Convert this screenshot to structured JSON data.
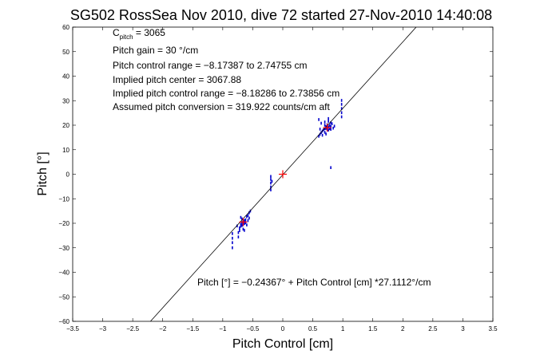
{
  "chart_data": {
    "type": "scatter",
    "title": "SG502 RossSea Nov 2010, dive 72 started 27-Nov-2010 14:40:08",
    "xlabel": "Pitch Control [cm]",
    "ylabel": "Pitch [°]",
    "xlim": [
      -3.5,
      3.5
    ],
    "ylim": [
      -60,
      60
    ],
    "xticks": [
      -3.5,
      -3,
      -2.5,
      -2,
      -1.5,
      -1,
      -0.5,
      0,
      0.5,
      1,
      1.5,
      2,
      2.5,
      3,
      3.5
    ],
    "yticks": [
      -60,
      -50,
      -40,
      -30,
      -20,
      -10,
      0,
      10,
      20,
      30,
      40,
      50,
      60
    ],
    "xtick_labels": [
      "−3.5",
      "−3",
      "−2.5",
      "−2",
      "−1.5",
      "−1",
      "−0.5",
      "0",
      "0.5",
      "1",
      "1.5",
      "2",
      "2.5",
      "3",
      "3.5"
    ],
    "ytick_labels": [
      "−60",
      "−50",
      "−40",
      "−30",
      "−20",
      "−10",
      "0",
      "10",
      "20",
      "30",
      "40",
      "50",
      "60"
    ],
    "grid": false,
    "annotations": {
      "cpitch_main": "C",
      "cpitch_sub": "pitch",
      "cpitch_value": " = 3065",
      "gain": "Pitch gain = 30 °/cm",
      "control_range": "Pitch control range = −8.17387 to 2.74755 cm",
      "implied_center": "Implied pitch center = 3067.88",
      "implied_range": "Implied pitch control range = −8.18286 to 2.73856 cm",
      "conversion": "Assumed pitch conversion = 319.922 counts/cm aft",
      "fit_equation": "Pitch [°] = −0.24367° + Pitch Control [cm] *27.1112°/cm"
    },
    "fit_line": {
      "intercept": -0.24367,
      "slope": 27.1112,
      "color": "#000000"
    },
    "colors": {
      "data": "#0000cc",
      "means": "#ff0000"
    },
    "series": [
      {
        "values": [
          [
            0.6,
            15.5
          ],
          [
            0.62,
            16.3
          ],
          [
            0.64,
            17.0
          ],
          [
            0.66,
            17.6
          ],
          [
            0.66,
            15.9
          ],
          [
            0.68,
            18.2
          ],
          [
            0.7,
            18.6
          ],
          [
            0.7,
            17.1
          ],
          [
            0.7,
            20.0
          ],
          [
            0.72,
            18.7
          ],
          [
            0.72,
            19.4
          ],
          [
            0.72,
            16.4
          ],
          [
            0.74,
            19.0
          ],
          [
            0.74,
            20.2
          ],
          [
            0.74,
            18.1
          ],
          [
            0.76,
            19.3
          ],
          [
            0.76,
            21.6
          ],
          [
            0.76,
            18.0
          ],
          [
            0.78,
            18.6
          ],
          [
            0.78,
            19.9
          ],
          [
            0.8,
            19.5
          ],
          [
            0.8,
            18.3
          ],
          [
            0.82,
            20.6
          ],
          [
            0.84,
            18.8
          ],
          [
            0.7,
            21.3
          ],
          [
            0.76,
            22.7
          ],
          [
            0.8,
            21.0
          ],
          [
            0.64,
            20.8
          ],
          [
            0.6,
            22.3
          ],
          [
            0.86,
            19.6
          ],
          [
            0.62,
            18.4
          ],
          [
            0.8,
            2.7
          ],
          [
            -0.74,
            -23.8
          ],
          [
            -0.74,
            -25.6
          ],
          [
            -0.72,
            -21.9
          ],
          [
            -0.72,
            -23.0
          ],
          [
            -0.7,
            -21.2
          ],
          [
            -0.7,
            -20.4
          ],
          [
            -0.68,
            -20.9
          ],
          [
            -0.68,
            -19.7
          ],
          [
            -0.68,
            -18.2
          ],
          [
            -0.66,
            -19.3
          ],
          [
            -0.66,
            -20.6
          ],
          [
            -0.66,
            -22.4
          ],
          [
            -0.64,
            -18.9
          ],
          [
            -0.64,
            -20.1
          ],
          [
            -0.62,
            -18.6
          ],
          [
            -0.62,
            -19.8
          ],
          [
            -0.6,
            -17.3
          ],
          [
            -0.6,
            -20.7
          ],
          [
            -0.58,
            -16.8
          ],
          [
            -0.58,
            -18.9
          ],
          [
            -0.56,
            -15.7
          ],
          [
            -0.56,
            -17.9
          ],
          [
            -0.54,
            -15.0
          ],
          [
            -0.7,
            -17.6
          ],
          [
            -0.76,
            -21.1
          ],
          [
            -0.64,
            -22.9
          ],
          [
            -0.84,
            -24.2
          ],
          [
            -0.84,
            -26.1
          ],
          [
            -0.84,
            -27.9
          ],
          [
            -0.84,
            -30.0
          ],
          [
            -0.2,
            -0.9
          ],
          [
            -0.2,
            -2.1
          ],
          [
            -0.2,
            -3.6
          ],
          [
            -0.2,
            -5.2
          ],
          [
            -0.2,
            -6.4
          ],
          [
            -0.18,
            -2.9
          ],
          [
            0.98,
            23.4
          ],
          [
            0.98,
            25.1
          ],
          [
            0.98,
            26.8
          ],
          [
            0.98,
            28.5
          ],
          [
            0.98,
            30.1
          ]
        ]
      },
      {
        "values": [
          [
            0.74,
            19.0
          ],
          [
            -0.66,
            -19.5
          ],
          [
            0.0,
            0.0
          ]
        ]
      }
    ]
  }
}
